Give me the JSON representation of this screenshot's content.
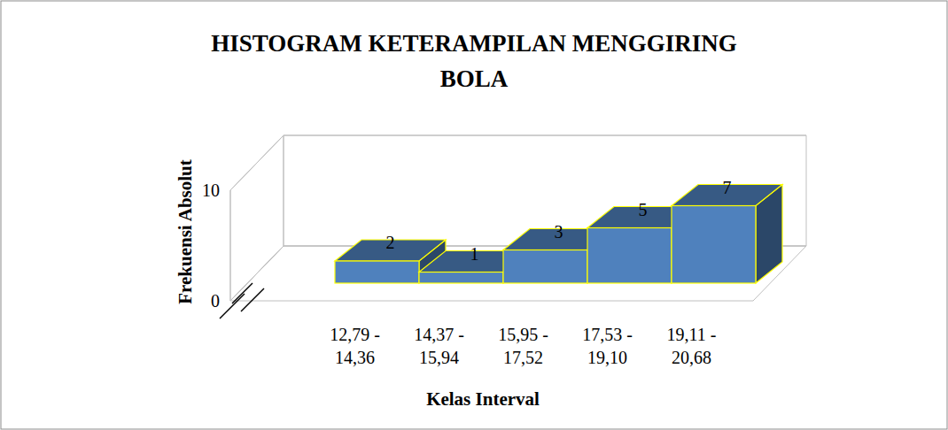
{
  "chart_data": {
    "type": "bar",
    "title": "HISTOGRAM KETERAMPILAN MENGGIRING BOLA",
    "x_label": "Kelas Interval",
    "y_label": "Frekuensi Absolut",
    "categories": [
      "12,79 - 14,36",
      "14,37 - 15,94",
      "15,95 - 17,52",
      "17,53 - 19,10",
      "19,11 - 20,68"
    ],
    "values": [
      2,
      1,
      3,
      5,
      7
    ],
    "color": "#4f81bd",
    "ylim": [
      0,
      10
    ],
    "yticks": [
      0,
      10
    ],
    "grid": true,
    "data_labels": true
  }
}
